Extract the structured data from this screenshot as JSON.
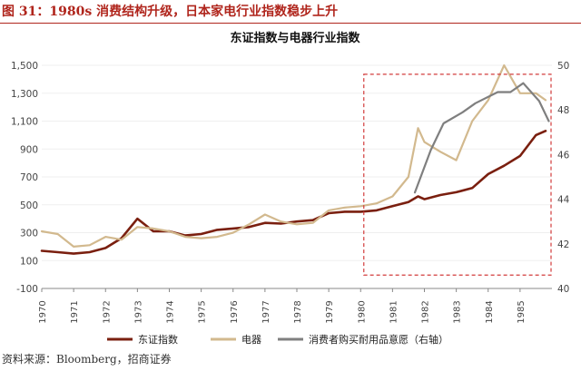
{
  "figure_title": "图 31：1980s 消费结构升级，日本家电行业指数稳步上升",
  "source": "资料来源：Bloomberg，招商证券",
  "chart_data": {
    "type": "line",
    "title": "东证指数与电器行业指数",
    "x": [
      1970,
      1970.5,
      1971,
      1971.5,
      1972,
      1972.5,
      1973,
      1973.5,
      1974,
      1974.5,
      1975,
      1975.5,
      1976,
      1976.5,
      1977,
      1977.5,
      1978,
      1978.5,
      1979,
      1979.5,
      1980,
      1980.5,
      1981,
      1981.5,
      1981.8,
      1982,
      1982.5,
      1983,
      1983.5,
      1984,
      1984.5,
      1985,
      1985.5,
      1985.8
    ],
    "x_tick_labels": [
      "1970",
      "1971",
      "1972",
      "1973",
      "1974",
      "1975",
      "1976",
      "1977",
      "1978",
      "1979",
      "1980",
      "1981",
      "1982",
      "1983",
      "1984",
      "1985"
    ],
    "left_axis": {
      "ylim": [
        -100,
        1500
      ],
      "ticks": [
        "-100",
        "100",
        "300",
        "500",
        "700",
        "900",
        "1,100",
        "1,300",
        "1,500"
      ]
    },
    "right_axis": {
      "ylim": [
        40,
        50
      ],
      "ticks": [
        "40",
        "42",
        "44",
        "46",
        "48",
        "50"
      ]
    },
    "series": [
      {
        "name": "东证指数",
        "axis": "left",
        "color": "#7a1f0f",
        "values": [
          170,
          160,
          150,
          160,
          190,
          260,
          400,
          310,
          310,
          280,
          290,
          320,
          330,
          340,
          370,
          365,
          380,
          390,
          440,
          450,
          450,
          460,
          490,
          520,
          560,
          540,
          570,
          590,
          620,
          720,
          780,
          850,
          1000,
          1030
        ]
      },
      {
        "name": "电器",
        "axis": "left",
        "color": "#d2b98e",
        "values": [
          310,
          290,
          200,
          210,
          270,
          250,
          340,
          330,
          310,
          270,
          260,
          270,
          300,
          360,
          430,
          380,
          360,
          370,
          460,
          480,
          490,
          510,
          560,
          700,
          1050,
          950,
          880,
          820,
          1100,
          1250,
          1500,
          1300,
          1300,
          1250
        ]
      },
      {
        "name": "消费者购买耐用品意愿（右轴）",
        "axis": "right",
        "color": "#7f7f7f",
        "x": [
          1981.7,
          1982.2,
          1982.6,
          1983.2,
          1983.6,
          1984.3,
          1984.7,
          1985.1,
          1985.6,
          1985.9
        ],
        "values": [
          44.3,
          46.2,
          47.4,
          47.9,
          48.3,
          48.8,
          48.8,
          49.2,
          48.4,
          47.5
        ]
      }
    ],
    "annotation": "dashed red box highlighting 1980–1985"
  }
}
